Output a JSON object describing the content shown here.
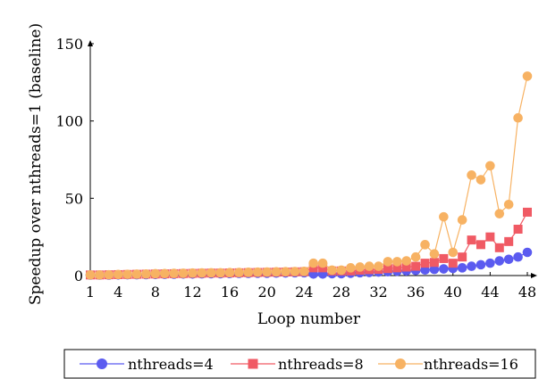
{
  "chart_data": {
    "type": "line",
    "xlabel": "Loop number",
    "ylabel": "Speedup over nthreads=1 (baseline)",
    "xlim": [
      1,
      48
    ],
    "ylim": [
      0,
      150
    ],
    "xticks": [
      1,
      4,
      8,
      12,
      16,
      20,
      24,
      28,
      32,
      36,
      40,
      44,
      48
    ],
    "yticks": [
      0,
      50,
      100,
      150
    ],
    "legend_placement": "bottom",
    "x": [
      1,
      2,
      3,
      4,
      5,
      6,
      7,
      8,
      9,
      10,
      11,
      12,
      13,
      14,
      15,
      16,
      17,
      18,
      19,
      20,
      21,
      22,
      23,
      24,
      25,
      26,
      27,
      28,
      29,
      30,
      31,
      32,
      33,
      34,
      35,
      36,
      37,
      38,
      39,
      40,
      41,
      42,
      43,
      44,
      45,
      46,
      47,
      48
    ],
    "series": [
      {
        "name": "nthreads=4",
        "color": "#5b5bf0",
        "marker": "circle",
        "values": [
          0.3,
          0.3,
          0.3,
          0.4,
          0.5,
          0.5,
          0.6,
          0.7,
          0.8,
          0.9,
          1.0,
          1.0,
          1.1,
          1.2,
          1.2,
          1.3,
          1.4,
          1.4,
          1.5,
          1.5,
          1.6,
          1.7,
          1.8,
          1.8,
          1.0,
          1.0,
          1.2,
          1.2,
          1.5,
          1.8,
          2.0,
          2.3,
          2.5,
          2.8,
          3.0,
          3.3,
          3.6,
          4.0,
          4.3,
          4.6,
          5.0,
          6.0,
          7.0,
          8.0,
          9.5,
          10.5,
          12.0,
          15.0
        ]
      },
      {
        "name": "nthreads=8",
        "color": "#f05a64",
        "marker": "square",
        "values": [
          0.4,
          0.4,
          0.5,
          0.6,
          0.7,
          0.8,
          0.9,
          1.0,
          1.1,
          1.2,
          1.3,
          1.4,
          1.5,
          1.6,
          1.6,
          1.7,
          1.8,
          1.9,
          2.0,
          2.1,
          2.2,
          2.3,
          2.4,
          2.5,
          5.0,
          5.0,
          3.0,
          3.0,
          3.0,
          3.5,
          3.8,
          4.0,
          4.5,
          5.0,
          5.5,
          6.0,
          8.0,
          8.5,
          11.0,
          8.0,
          12.0,
          23.0,
          20.0,
          25.0,
          18.0,
          22.0,
          30.0,
          41.0
        ]
      },
      {
        "name": "nthreads=16",
        "color": "#f7b263",
        "marker": "circle",
        "values": [
          0.4,
          0.4,
          0.5,
          0.7,
          0.8,
          0.9,
          1.0,
          1.2,
          1.3,
          1.4,
          1.5,
          1.6,
          1.7,
          1.8,
          1.8,
          1.9,
          2.0,
          2.1,
          2.2,
          2.3,
          2.4,
          2.5,
          2.6,
          2.7,
          8.0,
          8.0,
          3.5,
          3.5,
          5.0,
          5.5,
          6.0,
          6.0,
          9.0,
          9.0,
          9.5,
          12.0,
          20.0,
          14.0,
          38.0,
          15.0,
          36.0,
          65.0,
          62.0,
          71.0,
          40.0,
          46.0,
          102.0,
          129.0
        ]
      }
    ]
  }
}
